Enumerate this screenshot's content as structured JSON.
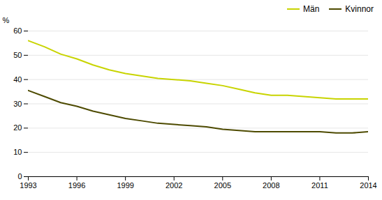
{
  "chart_data": {
    "type": "line",
    "x": [
      1993,
      1994,
      1995,
      1996,
      1997,
      1998,
      1999,
      2000,
      2001,
      2002,
      2003,
      2004,
      2005,
      2006,
      2007,
      2008,
      2009,
      2010,
      2011,
      2012,
      2013,
      2014
    ],
    "series": [
      {
        "name": "Män",
        "color": "#c8d400",
        "values": [
          56.0,
          53.5,
          50.5,
          48.5,
          46.0,
          44.0,
          42.5,
          41.5,
          40.5,
          40.0,
          39.5,
          38.5,
          37.5,
          36.0,
          34.5,
          33.5,
          33.5,
          33.0,
          32.5,
          32.0,
          32.0,
          32.0
        ]
      },
      {
        "name": "Kvinnor",
        "color": "#4d4a00",
        "values": [
          35.5,
          33.0,
          30.5,
          29.0,
          27.0,
          25.5,
          24.0,
          23.0,
          22.0,
          21.5,
          21.0,
          20.5,
          19.5,
          19.0,
          18.5,
          18.5,
          18.5,
          18.5,
          18.5,
          18.0,
          18.0,
          18.5
        ]
      }
    ],
    "xlim": [
      1993,
      2014
    ],
    "xticks": [
      1993,
      1996,
      1999,
      2002,
      2005,
      2008,
      2011,
      2014
    ],
    "ylim": [
      0,
      60
    ],
    "yticks": [
      0,
      10,
      20,
      30,
      40,
      50,
      60
    ],
    "ylabel": "%",
    "grid": true,
    "legend": "upper right"
  }
}
